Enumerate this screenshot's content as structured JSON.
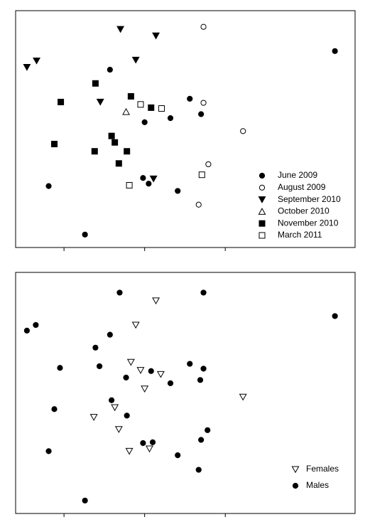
{
  "chart_data": [
    {
      "type": "scatter",
      "xlim": [
        -1.6,
        2.61
      ],
      "ylim": [
        -1.47,
        1.46
      ],
      "xticks": [
        -1,
        0,
        1
      ],
      "legend": "lower right",
      "series": [
        {
          "name": "June 2009",
          "color": "#000",
          "marker": "circle",
          "filled": true,
          "x": [
            2.36,
            -0.43,
            0.56,
            0.7,
            0,
            0.32,
            -0.02,
            0.05,
            0.41,
            -1.19,
            -0.74
          ],
          "values": [
            0.96,
            0.73,
            0.37,
            0.18,
            0.08,
            0.13,
            -0.61,
            -0.68,
            -0.77,
            -0.71,
            -1.31
          ]
        },
        {
          "name": "August 2009",
          "color": "#000",
          "marker": "circle",
          "filled": false,
          "x": [
            0.73,
            0.73,
            1.22,
            0.79,
            0.67
          ],
          "values": [
            1.26,
            0.32,
            -0.03,
            -0.44,
            -0.94
          ]
        },
        {
          "name": "September 2010",
          "color": "#000",
          "marker": "triangle-down",
          "filled": true,
          "x": [
            -0.3,
            0.14,
            -1.46,
            -1.34,
            -0.11,
            -0.55,
            0.11
          ],
          "values": [
            1.23,
            1.15,
            0.76,
            0.84,
            0.85,
            0.33,
            -0.62
          ]
        },
        {
          "name": "October 2010",
          "color": "#000",
          "marker": "triangle-up",
          "filled": false,
          "x": [
            -0.23
          ],
          "values": [
            0.21
          ]
        },
        {
          "name": "November 2010",
          "color": "#000",
          "marker": "square",
          "filled": true,
          "x": [
            -0.61,
            -1.04,
            -0.17,
            0.08,
            -0.41,
            -0.37,
            -1.12,
            -0.62,
            -0.22,
            -0.32
          ],
          "values": [
            0.56,
            0.33,
            0.4,
            0.26,
            -0.09,
            -0.17,
            -0.19,
            -0.28,
            -0.28,
            -0.43
          ]
        },
        {
          "name": "March 2011",
          "color": "#000",
          "marker": "square",
          "filled": false,
          "x": [
            -0.05,
            0.21,
            0.71,
            -0.19
          ],
          "values": [
            0.3,
            0.25,
            -0.57,
            -0.7
          ]
        }
      ]
    },
    {
      "type": "scatter",
      "xlim": [
        -1.6,
        2.61
      ],
      "ylim": [
        -1.51,
        1.47
      ],
      "xticks": [
        -1,
        0,
        1
      ],
      "legend": "lower right",
      "series": [
        {
          "name": "Females",
          "color": "#000",
          "marker": "triangle-down",
          "filled": false,
          "x": [
            0.14,
            -0.11,
            -0.17,
            -0.05,
            0.2,
            0,
            1.22,
            -0.37,
            -0.63,
            -0.32,
            -0.19,
            0.06
          ],
          "values": [
            1.12,
            0.82,
            0.36,
            0.26,
            0.21,
            0.03,
            -0.07,
            -0.2,
            -0.32,
            -0.47,
            -0.74,
            -0.71
          ]
        },
        {
          "name": "Males",
          "color": "#000",
          "marker": "circle",
          "filled": true,
          "x": [
            -0.31,
            0.73,
            2.36,
            -1.46,
            -1.35,
            -0.43,
            -0.61,
            -1.05,
            -0.56,
            -0.23,
            0.08,
            0.56,
            0.73,
            0.69,
            0.32,
            -0.41,
            -1.12,
            -0.22,
            0.78,
            0.7,
            -0.02,
            0.1,
            -1.19,
            0.41,
            0.67,
            -0.74
          ],
          "values": [
            1.22,
            1.22,
            0.93,
            0.75,
            0.82,
            0.7,
            0.54,
            0.29,
            0.31,
            0.17,
            0.25,
            0.34,
            0.28,
            0.14,
            0.1,
            -0.11,
            -0.22,
            -0.3,
            -0.48,
            -0.6,
            -0.64,
            -0.63,
            -0.74,
            -0.79,
            -0.97,
            -1.35
          ]
        }
      ]
    }
  ]
}
